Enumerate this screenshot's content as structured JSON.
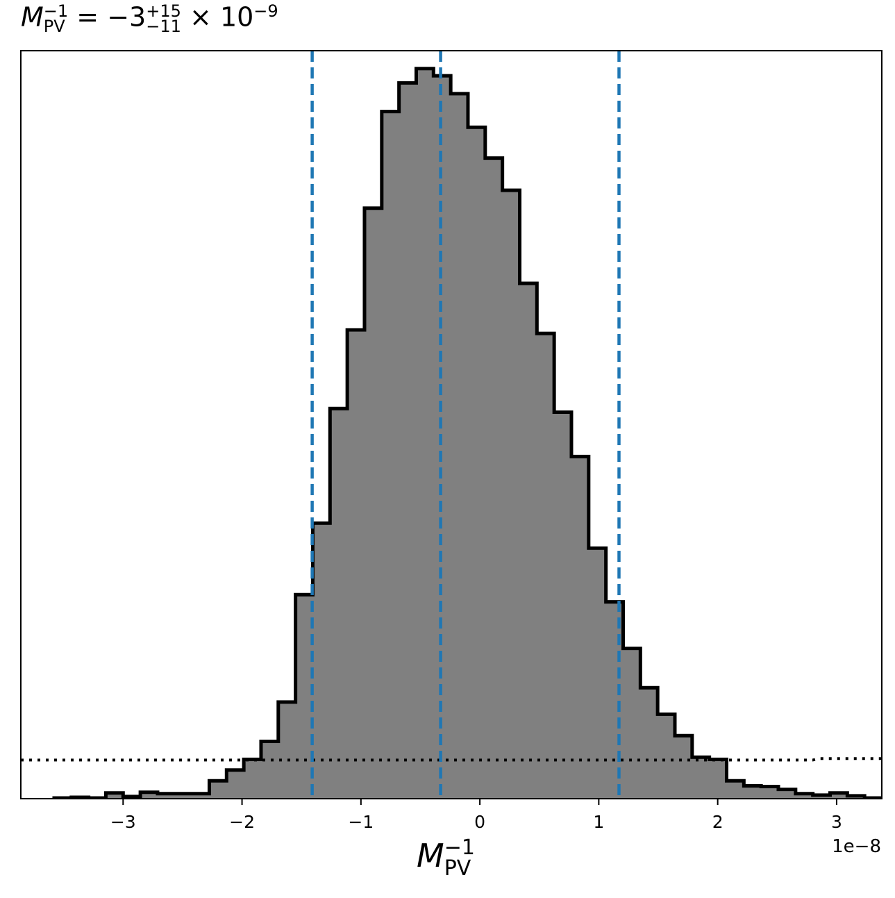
{
  "chart_data": {
    "type": "histogram",
    "title": {
      "symbol": "M",
      "symbol_sup": "−1",
      "symbol_sub": "PV",
      "equals": "=",
      "value": "−3",
      "upper": "+15",
      "lower": "−11",
      "times": "×",
      "base": "10",
      "exponent": "−9"
    },
    "xlabel": {
      "symbol": "M",
      "sup": "−1",
      "sub": "PV"
    },
    "x_offset_label": "1e−8",
    "xlim": [
      -3.86,
      3.38
    ],
    "ylim": [
      0,
      1.045
    ],
    "x_scale_note_units": 1e-08,
    "x_ticks": [
      -3,
      -2,
      -1,
      0,
      1,
      2,
      3
    ],
    "x_tick_labels": [
      "−3",
      "−2",
      "−1",
      "0",
      "1",
      "2",
      "3"
    ],
    "bin_edges": [
      -3.58,
      -3.435,
      -3.29,
      -3.145,
      -3.0,
      -2.855,
      -2.71,
      -2.565,
      -2.42,
      -2.275,
      -2.13,
      -1.985,
      -1.84,
      -1.695,
      -1.55,
      -1.405,
      -1.26,
      -1.115,
      -0.97,
      -0.825,
      -0.68,
      -0.535,
      -0.39,
      -0.245,
      -0.1,
      0.045,
      0.19,
      0.335,
      0.48,
      0.625,
      0.77,
      0.915,
      1.06,
      1.205,
      1.35,
      1.495,
      1.64,
      1.785,
      1.93,
      2.075,
      2.22,
      2.365,
      2.51,
      2.655,
      2.8,
      2.945,
      3.09,
      3.235,
      3.38
    ],
    "counts": [
      0.001,
      0.002,
      0.001,
      0.008,
      0.003,
      0.009,
      0.007,
      0.007,
      0.007,
      0.025,
      0.04,
      0.055,
      0.08,
      0.135,
      0.285,
      0.385,
      0.545,
      0.655,
      0.825,
      0.96,
      1.0,
      1.02,
      1.01,
      0.985,
      0.938,
      0.895,
      0.85,
      0.72,
      0.65,
      0.54,
      0.478,
      0.35,
      0.275,
      0.21,
      0.155,
      0.118,
      0.088,
      0.058,
      0.055,
      0.025,
      0.018,
      0.017,
      0.013,
      0.007,
      0.005,
      0.008,
      0.004,
      0.001
    ],
    "vlines": [
      -1.41,
      -0.33,
      1.17
    ],
    "prior_level": 0.054,
    "prior_level_right": 0.056,
    "colors": {
      "fill": "#808080",
      "edge": "#000000",
      "vline": "#1f77b4",
      "prior": "#000000"
    }
  }
}
